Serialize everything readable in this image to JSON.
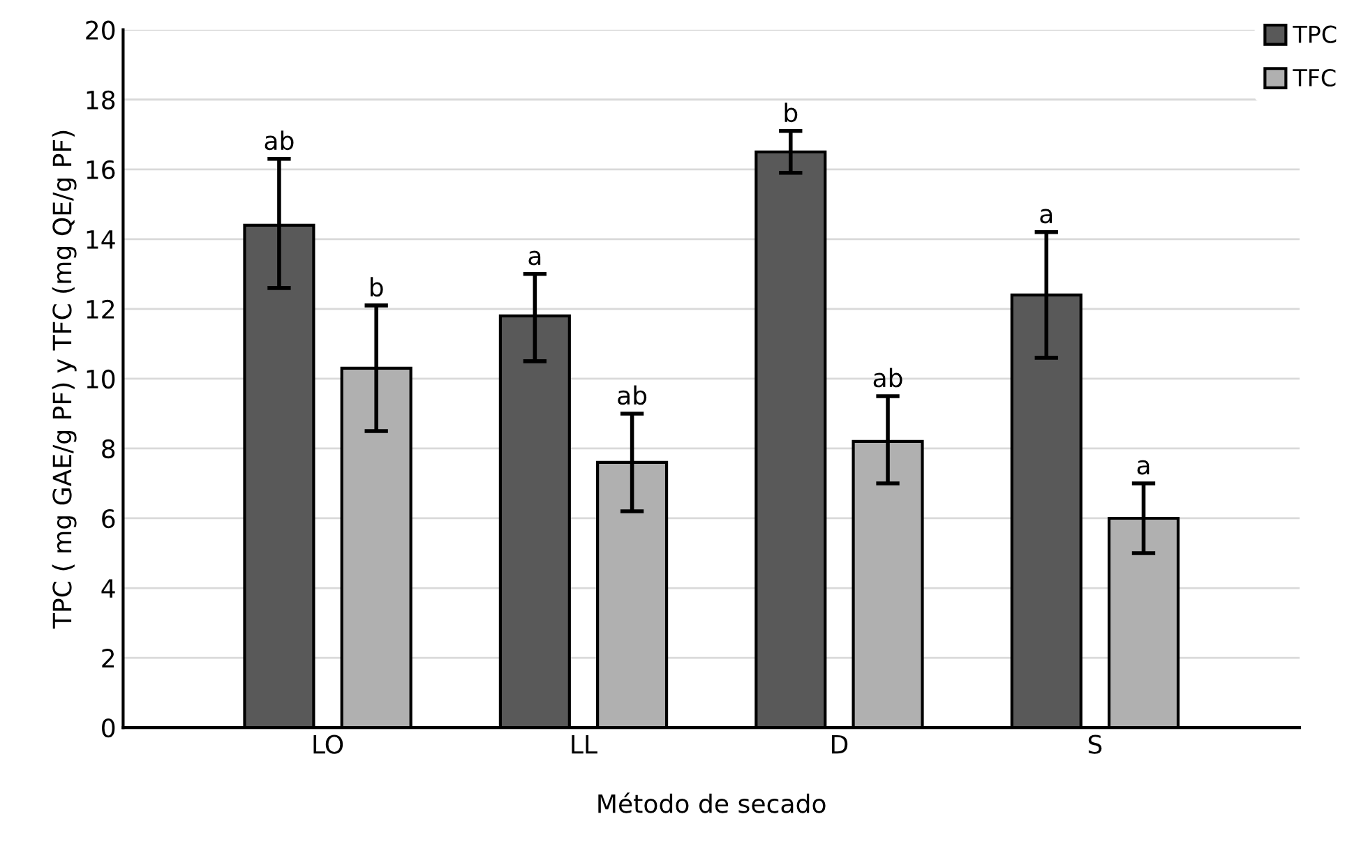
{
  "chart_data": {
    "type": "bar",
    "categories": [
      "LO",
      "LL",
      "D",
      "S"
    ],
    "xlabel": "Método de secado",
    "ylabel": "TPC ( mg GAE/g PF) y TFC (mg QE/g PF)",
    "series": [
      {
        "name": "TPC",
        "color": "#595959",
        "values": [
          14.4,
          11.8,
          16.5,
          12.4
        ],
        "errors": [
          [
            12.6,
            16.3
          ],
          [
            10.5,
            13.0
          ],
          [
            15.9,
            17.1
          ],
          [
            10.6,
            14.2
          ]
        ],
        "value_labels": [
          "ab",
          "a",
          "b",
          "a"
        ]
      },
      {
        "name": "TFC",
        "color": "#b0b0b0",
        "values": [
          10.3,
          7.6,
          8.2,
          6.0
        ],
        "errors": [
          [
            8.5,
            12.1
          ],
          [
            6.2,
            9.0
          ],
          [
            7.0,
            9.5
          ],
          [
            5.0,
            7.0
          ]
        ],
        "value_labels": [
          "b",
          "ab",
          "ab",
          "a"
        ]
      }
    ],
    "ylim": [
      0,
      20
    ],
    "yticks": [
      0,
      2,
      4,
      6,
      8,
      10,
      12,
      14,
      16,
      18,
      20
    ],
    "grid": "y",
    "legend": "top right"
  }
}
